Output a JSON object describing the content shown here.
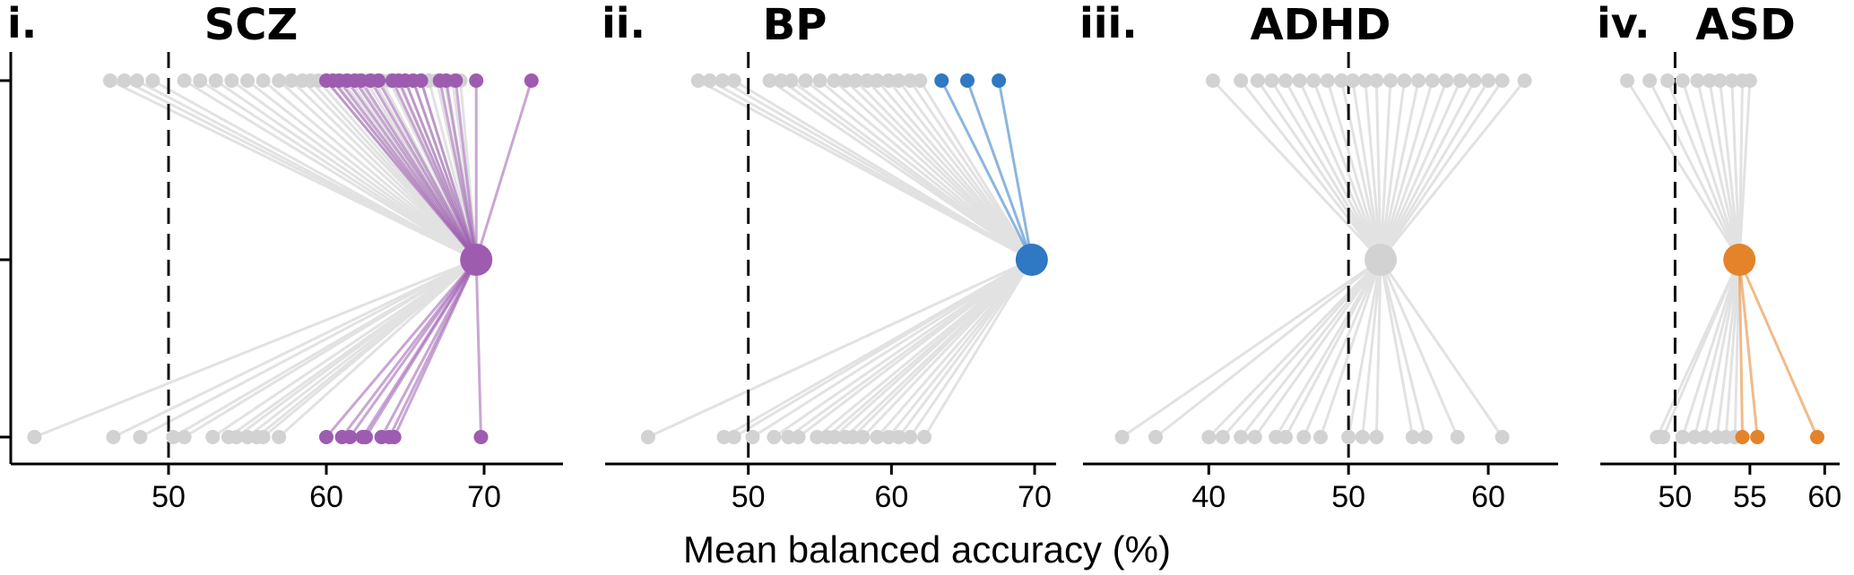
{
  "chart_data": {
    "type": "scatter",
    "xlabel": "Mean balanced accuracy (%)",
    "panels": [
      {
        "label": "i.",
        "title": "SCZ",
        "xlim": [
          40,
          75
        ],
        "xticks": [
          50,
          60,
          70
        ],
        "ref_line": 50,
        "color": "#9d5cb0",
        "center": 69.5,
        "top_gray": [
          46.3,
          47.2,
          48,
          49,
          51,
          52,
          53,
          54,
          55,
          56,
          57,
          57.8,
          58.5,
          59,
          59.5,
          60,
          60.5,
          61,
          61.5,
          62,
          62.5,
          63,
          63.5,
          64,
          64.5,
          65,
          65.5,
          66,
          66.5,
          67,
          67.5,
          68,
          68.5
        ],
        "top_hl": [
          60,
          60.4,
          60.8,
          61.3,
          61.8,
          62.2,
          62.8,
          63.3,
          64.2,
          64.6,
          65,
          65.5,
          66,
          67.2,
          67.6,
          68.2,
          69.5,
          73
        ],
        "bottom_gray": [
          41.5,
          46.5,
          48.2,
          50.3,
          51,
          52.8,
          53.8,
          54.3,
          55,
          55.6,
          56,
          57
        ],
        "bottom_hl": [
          60,
          61,
          61.5,
          62.3,
          62.5,
          63.5,
          64,
          64.3,
          69.8
        ]
      },
      {
        "label": "ii.",
        "title": "BP",
        "xlim": [
          40,
          71.5
        ],
        "xticks": [
          50,
          60,
          70
        ],
        "ref_line": 50,
        "color": "#2f78c4",
        "center": 69.8,
        "top_gray": [
          46.5,
          47.3,
          48.2,
          49,
          51.5,
          52.3,
          53,
          54,
          55,
          56,
          56.8,
          57.5,
          58.3,
          59,
          59.8,
          60.5,
          61.3,
          62
        ],
        "top_hl": [
          63.5,
          65.3,
          67.5
        ],
        "bottom_gray": [
          43,
          48.3,
          49,
          50.3,
          51.8,
          52.8,
          53.5,
          54.8,
          55.5,
          56,
          56.8,
          57.3,
          58,
          59,
          59.8,
          60.5,
          61.3,
          62.3
        ]
      },
      {
        "label": "iii.",
        "title": "ADHD",
        "xlim": [
          31,
          65
        ],
        "xticks": [
          40,
          50,
          60
        ],
        "ref_line": 50,
        "center": 52.3,
        "top_gray": [
          40.3,
          42.3,
          43.5,
          44.5,
          45.5,
          46.5,
          47.5,
          48.5,
          49.5,
          50.3,
          51.2,
          52,
          53,
          54,
          55,
          56,
          57,
          58,
          59,
          60,
          61,
          62.6
        ],
        "bottom_gray": [
          33.8,
          36.2,
          40,
          41,
          42.3,
          43.3,
          44.8,
          45.5,
          46.8,
          48,
          50,
          51,
          52,
          54.6,
          55.5,
          57.8,
          61
        ]
      },
      {
        "label": "iv.",
        "title": "ASD",
        "xlim": [
          45,
          61
        ],
        "xticks": [
          50,
          55,
          60
        ],
        "ref_line": 50,
        "color": "#e4832a",
        "center": 54.3,
        "top_gray": [
          46.8,
          48.3,
          49.5,
          50.5,
          51.5,
          52.3,
          53,
          53.8,
          54.5,
          55
        ],
        "bottom_gray": [
          48.8,
          49.2,
          50.5,
          51.3,
          52,
          52.8,
          53.4,
          54
        ],
        "bottom_hl": [
          54.5,
          55.5,
          59.5
        ]
      }
    ]
  }
}
